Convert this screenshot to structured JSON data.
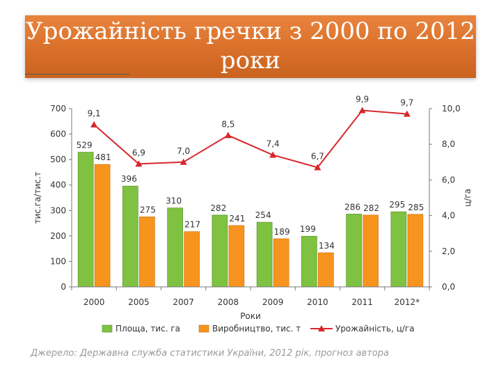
{
  "slide": {
    "title_line1": "Урожайність гречки з 2000 по 2012",
    "title_line2": "роки",
    "source": "Джерело: Державна служба статистики України, 2012 рік, прогноз автора"
  },
  "chart_data": {
    "type": "bar",
    "categories": [
      "2000",
      "2005",
      "2007",
      "2008",
      "2009",
      "2010",
      "2011",
      "2012*"
    ],
    "xlabel": "Роки",
    "ylabel": "тис.га/тис.т",
    "y2label": "ц/га",
    "ylim": [
      0,
      700
    ],
    "yticks": [
      "0",
      "100",
      "200",
      "300",
      "400",
      "500",
      "600",
      "700"
    ],
    "y2lim": [
      0,
      10
    ],
    "y2ticks": [
      "0,0",
      "2,0",
      "4,0",
      "6,0",
      "8,0",
      "10,0"
    ],
    "legend_position": "bottom",
    "series": [
      {
        "name": "Площа, тис. га",
        "kind": "bar",
        "color": "#7fc241",
        "values": [
          529,
          396,
          310,
          282,
          254,
          199,
          286,
          295
        ],
        "labels": [
          "529",
          "396",
          "310",
          "282",
          "254",
          "199",
          "286",
          "295"
        ]
      },
      {
        "name": "Виробництво, тис. т",
        "kind": "bar",
        "color": "#f7941d",
        "values": [
          481,
          275,
          217,
          241,
          189,
          134,
          282,
          285
        ],
        "labels": [
          "481",
          "275",
          "217",
          "241",
          "189",
          "134",
          "282",
          "285"
        ]
      },
      {
        "name": "Урожайність, ц/га",
        "kind": "line",
        "axis": "right",
        "color": "#d7262b",
        "values": [
          9.1,
          6.9,
          7.0,
          8.5,
          7.4,
          6.7,
          9.9,
          9.7
        ],
        "labels": [
          "9,1",
          "6,9",
          "7,0",
          "8,5",
          "7,4",
          "6,7",
          "9,9",
          "9,7"
        ]
      }
    ]
  }
}
